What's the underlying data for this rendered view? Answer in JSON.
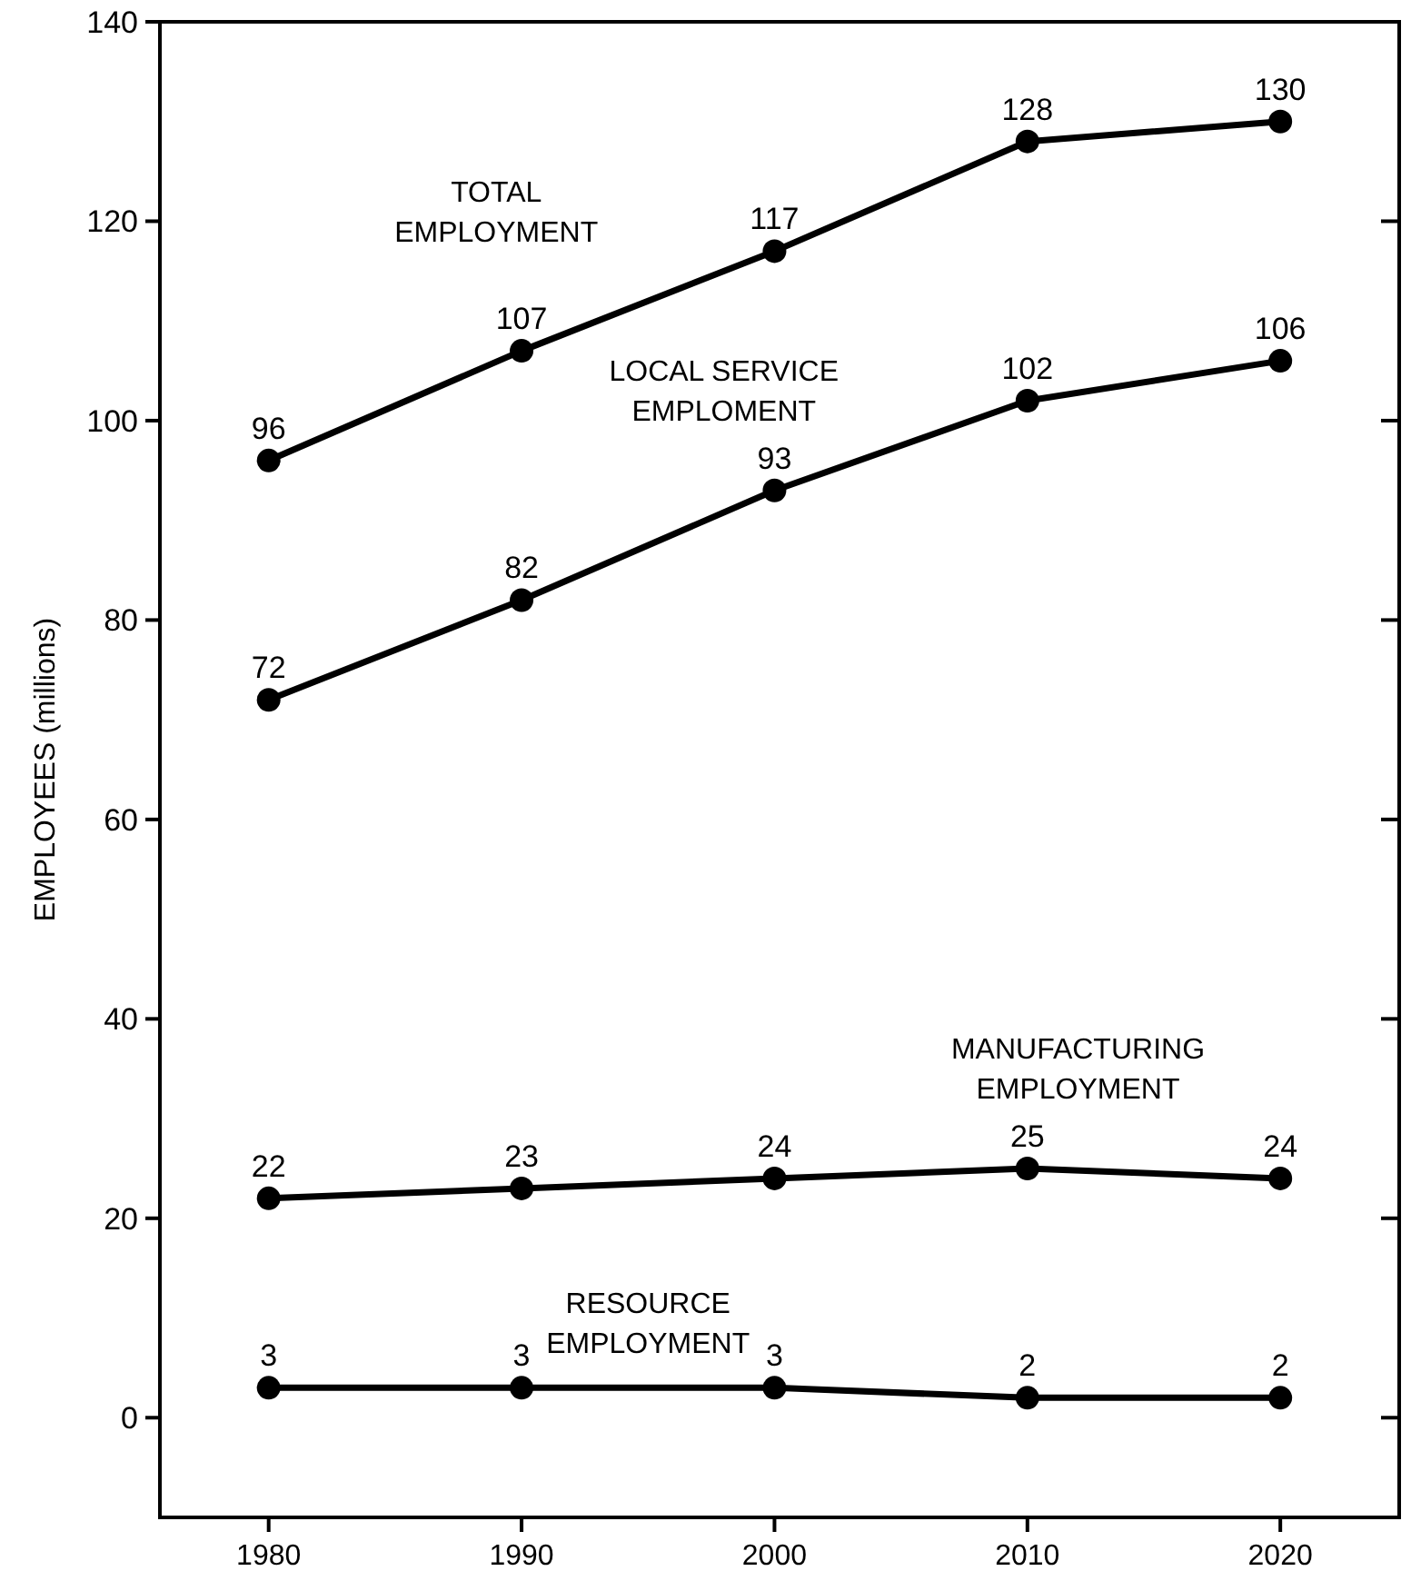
{
  "chart_data": {
    "type": "line",
    "ylabel": "EMPLOYEES (millions)",
    "x": [
      1980,
      1990,
      2000,
      2010,
      2020
    ],
    "xlim": [
      1975.7,
      2024.7
    ],
    "xticks": [
      1980,
      1990,
      2000,
      2010,
      2020
    ],
    "ylim": [
      -10,
      140
    ],
    "yticks": [
      0,
      20,
      40,
      60,
      80,
      100,
      120,
      140
    ],
    "grid": false,
    "marker": "circle",
    "line_style": "solid",
    "data_labels": true,
    "series": [
      {
        "name": "TOTAL EMPLOYMENT",
        "color": "#000000",
        "values": [
          96,
          107,
          117,
          128,
          130
        ]
      },
      {
        "name": "LOCAL SERVICE EMPLOMENT",
        "color": "#000000",
        "values": [
          72,
          82,
          93,
          102,
          106
        ]
      },
      {
        "name": "MANUFACTURING EMPLOYMENT",
        "color": "#000000",
        "values": [
          22,
          23,
          24,
          25,
          24
        ]
      },
      {
        "name": "RESOURCE EMPLOYMENT",
        "color": "#000000",
        "values": [
          3,
          3,
          3,
          2,
          2
        ]
      }
    ]
  }
}
